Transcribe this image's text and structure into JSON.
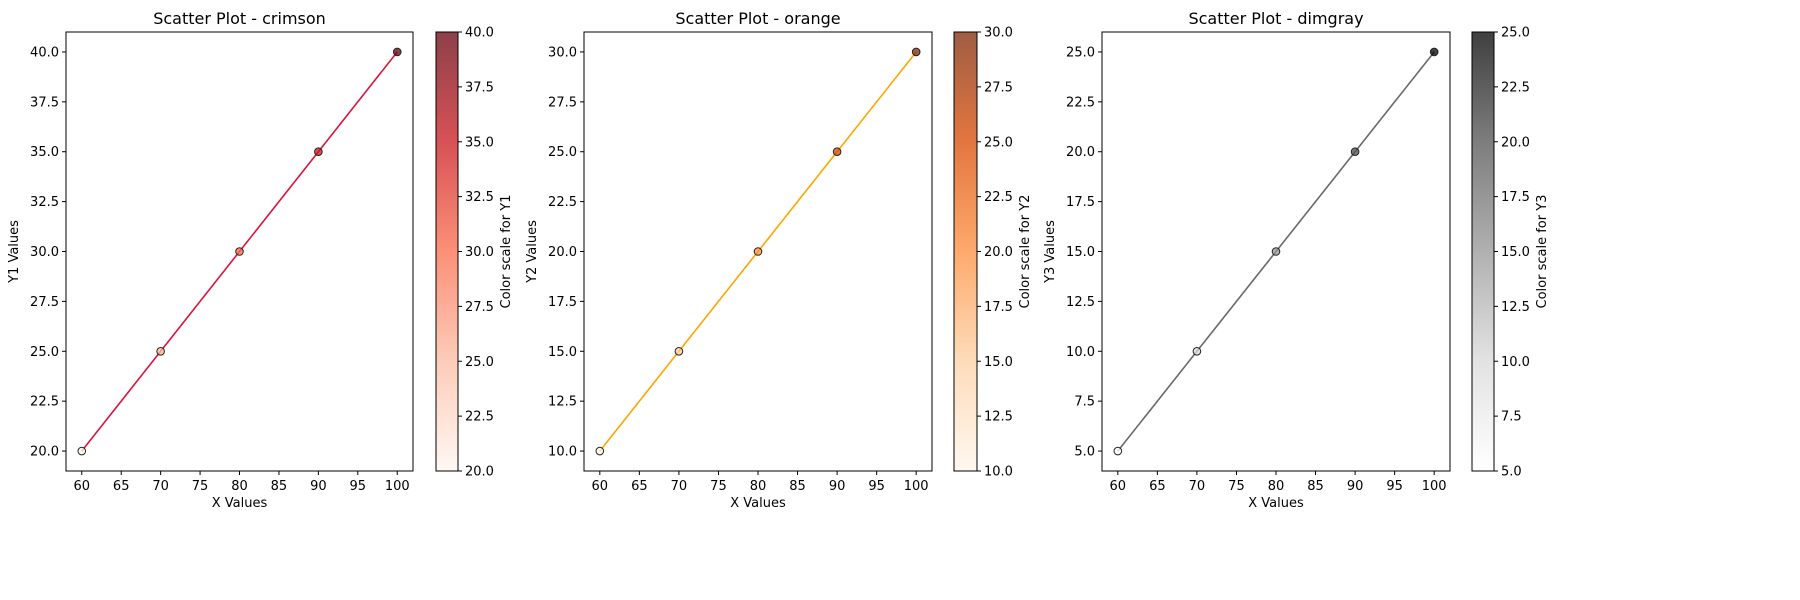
{
  "chart_data": [
    {
      "type": "scatter",
      "title": "Scatter Plot - crimson",
      "xlabel": "X Values",
      "ylabel": "Y1 Values",
      "colorbar_label": "Color scale for Y1",
      "line_color": "#dc143c",
      "colormap": "Reds",
      "x": [
        60,
        70,
        80,
        90,
        100
      ],
      "y": [
        20,
        25,
        30,
        35,
        40
      ],
      "xlim": [
        58,
        102
      ],
      "ylim": [
        19,
        41
      ],
      "xticks": [
        "60",
        "65",
        "70",
        "75",
        "80",
        "85",
        "90",
        "95",
        "100"
      ],
      "yticks": [
        "20.0",
        "22.5",
        "25.0",
        "27.5",
        "30.0",
        "32.5",
        "35.0",
        "37.5",
        "40.0"
      ],
      "colorbar_range": [
        20,
        40
      ],
      "colorbar_ticks": [
        "20.0",
        "22.5",
        "25.0",
        "27.5",
        "30.0",
        "32.5",
        "35.0",
        "37.5",
        "40.0"
      ]
    },
    {
      "type": "scatter",
      "title": "Scatter Plot - orange",
      "xlabel": "X Values",
      "ylabel": "Y2 Values",
      "colorbar_label": "Color scale for Y2",
      "line_color": "#ffa500",
      "colormap": "Oranges",
      "x": [
        60,
        70,
        80,
        90,
        100
      ],
      "y": [
        10,
        15,
        20,
        25,
        30
      ],
      "xlim": [
        58,
        102
      ],
      "ylim": [
        9,
        31
      ],
      "xticks": [
        "60",
        "65",
        "70",
        "75",
        "80",
        "85",
        "90",
        "95",
        "100"
      ],
      "yticks": [
        "10.0",
        "12.5",
        "15.0",
        "17.5",
        "20.0",
        "22.5",
        "25.0",
        "27.5",
        "30.0"
      ],
      "colorbar_range": [
        10,
        30
      ],
      "colorbar_ticks": [
        "10.0",
        "12.5",
        "15.0",
        "17.5",
        "20.0",
        "22.5",
        "25.0",
        "27.5",
        "30.0"
      ]
    },
    {
      "type": "scatter",
      "title": "Scatter Plot - dimgray",
      "xlabel": "X Values",
      "ylabel": "Y3 Values",
      "colorbar_label": "Color scale for Y3",
      "line_color": "#696969",
      "colormap": "Greys",
      "x": [
        60,
        70,
        80,
        90,
        100
      ],
      "y": [
        5,
        10,
        15,
        20,
        25
      ],
      "xlim": [
        58,
        102
      ],
      "ylim": [
        4,
        26
      ],
      "xticks": [
        "60",
        "65",
        "70",
        "75",
        "80",
        "85",
        "90",
        "95",
        "100"
      ],
      "yticks": [
        "5.0",
        "7.5",
        "10.0",
        "12.5",
        "15.0",
        "17.5",
        "20.0",
        "22.5",
        "25.0"
      ],
      "colorbar_range": [
        5,
        25
      ],
      "colorbar_ticks": [
        "5.0",
        "7.5",
        "10.0",
        "12.5",
        "15.0",
        "17.5",
        "20.0",
        "22.5",
        "25.0"
      ]
    }
  ]
}
